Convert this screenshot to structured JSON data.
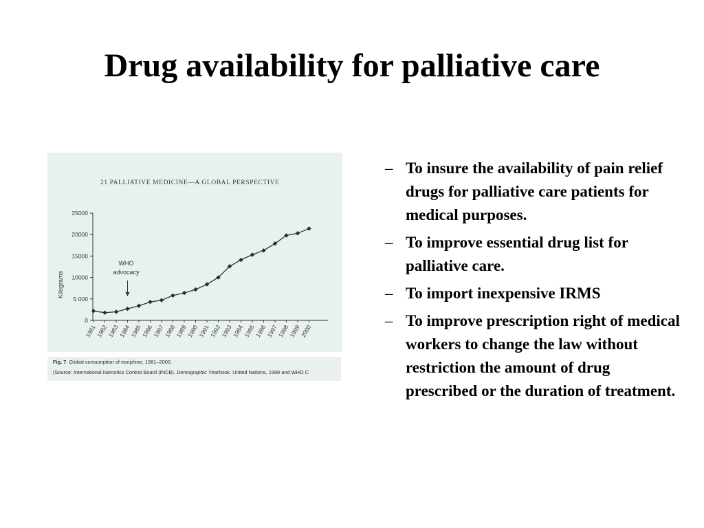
{
  "slide": {
    "title": "Drug availability for palliative care"
  },
  "figure": {
    "header": "21 PALLIATIVE MEDICINE—A GLOBAL PERSPECTIVE",
    "caption_label": "Fig. 7",
    "caption_text": "Global consumption of morphine, 1981–2000.",
    "source_open": "(Source: International Narcotics Control Board (INCB). ",
    "source_italic": "Demographic Yearbook.",
    "source_rest": " United Nations, 1999 and WHO C",
    "annotation_lines": [
      "WHO",
      "advocacy"
    ],
    "annotation_year": "1984",
    "colors": {
      "panel_bg": "#e9f0f0",
      "ink": "#333333"
    }
  },
  "chart_data": {
    "type": "line",
    "title": "",
    "xlabel": "",
    "ylabel": "Kilograms",
    "x": [
      "1981",
      "1982",
      "1983",
      "1984",
      "1985",
      "1986",
      "1987",
      "1988",
      "1989",
      "1990",
      "1991",
      "1992",
      "1993",
      "1994",
      "1995",
      "1996",
      "1997",
      "1998",
      "1999",
      "2000"
    ],
    "y_ticks": [
      "0",
      "5 000",
      "10000",
      "15000",
      "20000",
      "25000"
    ],
    "ylim": [
      0,
      25000
    ],
    "series": [
      {
        "values": [
          2200,
          1800,
          2000,
          2700,
          3400,
          4300,
          4700,
          5800,
          6400,
          7200,
          8400,
          10000,
          12600,
          14100,
          15300,
          16300,
          17900,
          19800,
          20300,
          21400
        ]
      }
    ],
    "grid": false,
    "legend": "none",
    "marker": "diamond"
  },
  "bullets": [
    "To insure the availability of pain relief drugs for palliative care patients for medical purposes.",
    "To improve essential drug list for palliative care.",
    "To import inexpensive IRMS",
    "To improve prescription right of medical workers to change the law without restriction the amount of drug prescribed or the duration of treatment."
  ],
  "bullet_marker": "–"
}
